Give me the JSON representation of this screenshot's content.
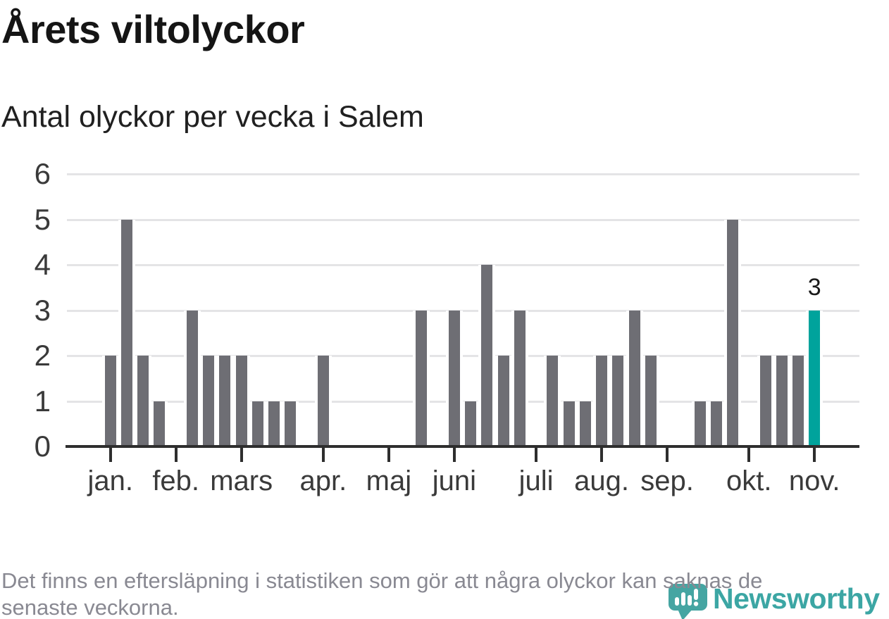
{
  "header": {
    "title": "Årets viltolyckor",
    "subtitle": "Antal olyckor per vecka i Salem"
  },
  "footer": {
    "line1": "Det finns en eftersläpning i statistiken som gör att några olyckor kan saknas de",
    "line2": "senaste veckorna."
  },
  "branding": {
    "logo_text": "Newsworthy",
    "logo_icon": "newsworthy-speech-bubble-barchart-icon"
  },
  "chart_data": {
    "type": "bar",
    "title": "Årets viltolyckor",
    "subtitle": "Antal olyckor per vecka i Salem",
    "x_unit": "vecka",
    "first_week": 1,
    "values": [
      2,
      5,
      2,
      1,
      0,
      3,
      2,
      2,
      2,
      1,
      1,
      1,
      0,
      2,
      0,
      0,
      0,
      0,
      0,
      3,
      0,
      3,
      1,
      4,
      2,
      3,
      0,
      2,
      1,
      1,
      2,
      2,
      3,
      2,
      0,
      0,
      1,
      1,
      5,
      0,
      2,
      2,
      2,
      3
    ],
    "ylim": [
      0,
      6
    ],
    "y_ticks": [
      0,
      1,
      2,
      3,
      4,
      5,
      6
    ],
    "grid": true,
    "month_ticks": [
      {
        "label": "jan.",
        "week": 1
      },
      {
        "label": "feb.",
        "week": 5
      },
      {
        "label": "mars",
        "week": 9
      },
      {
        "label": "apr.",
        "week": 14
      },
      {
        "label": "maj",
        "week": 18
      },
      {
        "label": "juni",
        "week": 22
      },
      {
        "label": "juli",
        "week": 27
      },
      {
        "label": "aug.",
        "week": 31
      },
      {
        "label": "sep.",
        "week": 35
      },
      {
        "label": "okt.",
        "week": 40
      },
      {
        "label": "nov.",
        "week": 44
      }
    ],
    "highlight": {
      "week": 44,
      "value": 3,
      "label": "3"
    },
    "colors": {
      "bar": "#6e6e74",
      "highlight": "#00a39c",
      "grid": "#e4e4e6",
      "axis": "#2e2e2e",
      "axis_text": "#3a3a3a",
      "value_label": "#1a1a1a",
      "footer_text": "#898992",
      "logo_teal": "#3ca6a4"
    }
  }
}
